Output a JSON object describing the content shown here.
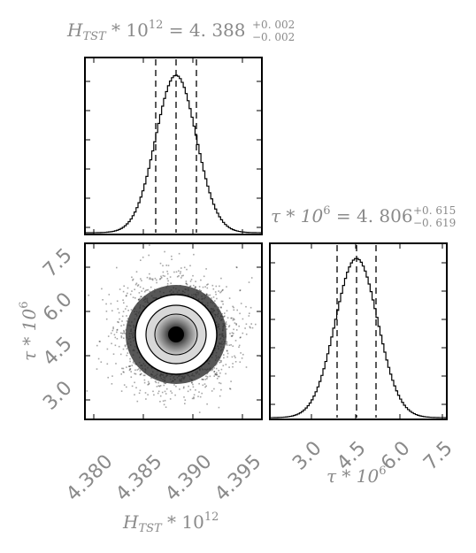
{
  "chart_data": [
    {
      "type": "histogram",
      "panel": "marginal-h",
      "title_main": "H_TST * 10^12 = 4.388",
      "title_sup": "+0.002",
      "title_sub": "−0.002",
      "x_label": "",
      "median": 4.388,
      "quantiles": [
        4.386,
        4.388,
        4.39
      ],
      "xlim": [
        4.378,
        4.396
      ],
      "ticks": [
        "4.380",
        "4.385",
        "4.390",
        "4.395"
      ]
    },
    {
      "type": "histogram",
      "panel": "marginal-tau",
      "title_main": "τ * 10^6 = 4.806",
      "title_sup": "+0.615",
      "title_sub": "−0.619",
      "x_label": "τ * 10^6",
      "median": 4.806,
      "quantiles": [
        4.187,
        4.806,
        5.421
      ],
      "xlim": [
        1.9,
        7.9
      ],
      "ticks": [
        "3.0",
        "4.5",
        "6.0",
        "7.5"
      ]
    },
    {
      "type": "scatter-contour",
      "panel": "joint",
      "x_label": "H_TST * 10^12",
      "y_label": "τ * 10^6",
      "x_ticks": [
        "4.380",
        "4.385",
        "4.390",
        "4.395"
      ],
      "y_ticks": [
        "3.0",
        "4.5",
        "6.0",
        "7.5"
      ],
      "center": {
        "x": 4.388,
        "y": 4.806
      },
      "xlim": [
        4.378,
        4.396
      ],
      "ylim": [
        1.9,
        7.9
      ]
    }
  ],
  "labels": {
    "h_title": "H",
    "h_title_sub": "TST",
    "h_title_rest": " * 10",
    "h_title_exp": "12",
    "h_title_val": " = 4. 388",
    "h_err_plus": "+0. 002",
    "h_err_minus": "−0. 002",
    "tau_title": "τ * 10",
    "tau_title_exp": "6",
    "tau_title_val": " = 4. 806",
    "tau_err_plus": "+0. 615",
    "tau_err_minus": "−0. 619",
    "x_axis_h": "H",
    "x_axis_h_sub": "TST",
    "x_axis_h_rest": " * 10",
    "x_axis_h_exp": "12",
    "x_axis_tau": "τ * 10",
    "x_axis_tau_exp": "6",
    "y_axis_tau": "τ * 10",
    "y_axis_tau_exp": "6",
    "tick_h_1": "4.380",
    "tick_h_2": "4.385",
    "tick_h_3": "4.390",
    "tick_h_4": "4.395",
    "tick_t_1": "3.0",
    "tick_t_2": "4.5",
    "tick_t_3": "6.0",
    "tick_t_4": "7.5",
    "ytick_t_1": "3.0",
    "ytick_t_2": "4.5",
    "ytick_t_3": "6.0",
    "ytick_t_4": "7.5"
  }
}
